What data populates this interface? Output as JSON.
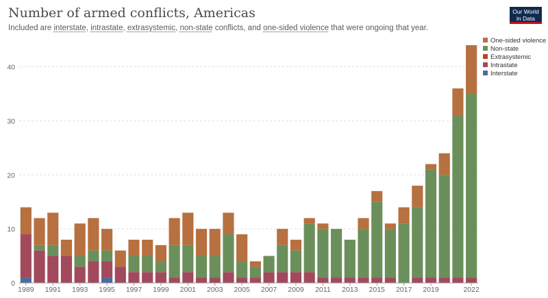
{
  "header": {
    "title": "Number of armed conflicts, Americas",
    "subtitle_parts": [
      {
        "text": "Included are ",
        "u": false
      },
      {
        "text": "interstate",
        "u": true
      },
      {
        "text": ", ",
        "u": false
      },
      {
        "text": "intrastate",
        "u": true
      },
      {
        "text": ", ",
        "u": false
      },
      {
        "text": "extrasystemic",
        "u": true
      },
      {
        "text": ", ",
        "u": false
      },
      {
        "text": "non-state",
        "u": true
      },
      {
        "text": " conflicts, and ",
        "u": false
      },
      {
        "text": "one-sided violence",
        "u": true
      },
      {
        "text": " that were ongoing that year.",
        "u": false
      }
    ]
  },
  "logo": {
    "line1": "Our World",
    "line2": "in Data"
  },
  "chart_data": {
    "type": "bar",
    "stacked": true,
    "categories": [
      1989,
      1990,
      1991,
      1992,
      1993,
      1994,
      1995,
      1996,
      1997,
      1998,
      1999,
      2000,
      2001,
      2002,
      2003,
      2004,
      2005,
      2006,
      2007,
      2008,
      2009,
      2010,
      2011,
      2012,
      2013,
      2014,
      2015,
      2016,
      2017,
      2018,
      2019,
      2020,
      2021,
      2022
    ],
    "x_tick_labels": [
      "1989",
      "1991",
      "1993",
      "1995",
      "1997",
      "1999",
      "2001",
      "2003",
      "2005",
      "2007",
      "2009",
      "2011",
      "2013",
      "2015",
      "2017",
      "2019",
      "2022"
    ],
    "ylim": [
      0,
      44
    ],
    "y_ticks": [
      0,
      10,
      20,
      30,
      40
    ],
    "grid": true,
    "legend_placement": "right",
    "series": [
      {
        "name": "Interstate",
        "color": "#4c6a9c",
        "values": [
          1,
          0,
          0,
          0,
          0,
          0,
          1,
          0,
          0,
          0,
          0,
          0,
          0,
          0,
          0,
          0,
          0,
          0,
          0,
          0,
          0,
          0,
          0,
          0,
          0,
          0,
          0,
          0,
          0,
          0,
          0,
          0,
          0,
          0
        ]
      },
      {
        "name": "Intrastate",
        "color": "#a2495c",
        "values": [
          8,
          6,
          5,
          5,
          3,
          4,
          3,
          3,
          2,
          2,
          2,
          1,
          2,
          1,
          1,
          2,
          1,
          1,
          2,
          2,
          2,
          2,
          1,
          1,
          1,
          1,
          1,
          1,
          0,
          1,
          1,
          1,
          1,
          1
        ]
      },
      {
        "name": "Extrasystemic",
        "color": "#c73d28",
        "values": [
          0,
          0,
          0,
          0,
          0,
          0,
          0,
          0,
          0,
          0,
          0,
          0,
          0,
          0,
          0,
          0,
          0,
          0,
          0,
          0,
          0,
          0,
          0,
          0,
          0,
          0,
          0,
          0,
          0,
          0,
          0,
          0,
          0,
          0
        ]
      },
      {
        "name": "Non-state",
        "color": "#6b8f5a",
        "values": [
          0,
          1,
          2,
          0,
          2,
          2,
          2,
          0,
          3,
          3,
          2,
          6,
          5,
          4,
          4,
          7,
          3,
          2,
          3,
          5,
          4,
          9,
          9,
          9,
          7,
          9,
          14,
          9,
          11,
          13,
          20,
          19,
          30,
          34
        ]
      },
      {
        "name": "One-sided violence",
        "color": "#b7703f",
        "values": [
          5,
          5,
          6,
          3,
          6,
          6,
          4,
          3,
          3,
          3,
          3,
          5,
          6,
          5,
          5,
          4,
          5,
          1,
          0,
          3,
          2,
          1,
          1,
          0,
          0,
          2,
          2,
          1,
          3,
          4,
          1,
          4,
          5,
          9
        ]
      }
    ]
  }
}
